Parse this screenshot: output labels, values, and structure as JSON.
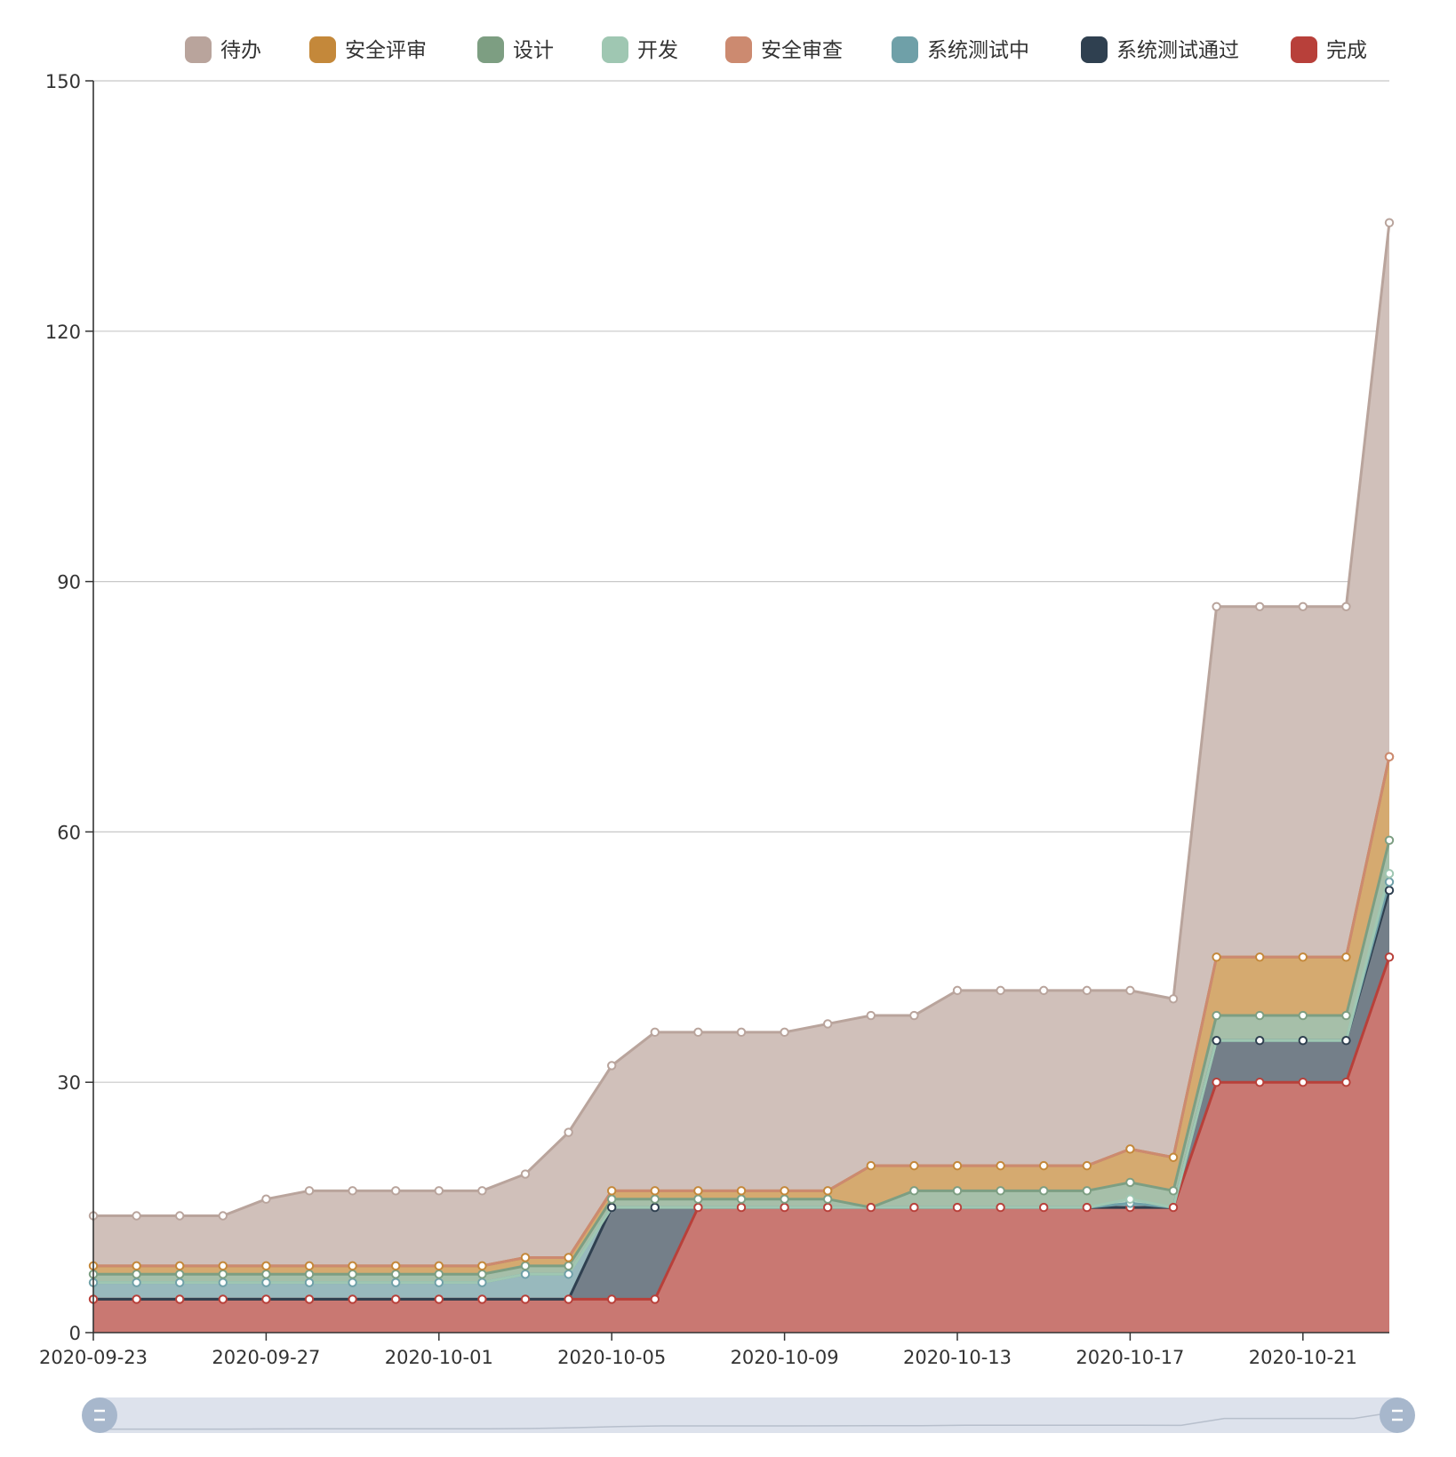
{
  "chart_data": {
    "type": "area",
    "stacked": true,
    "title": "",
    "xlabel": "",
    "ylabel": "",
    "ylim": [
      0,
      150
    ],
    "y_ticks": [
      0,
      30,
      60,
      90,
      120,
      150
    ],
    "x_tick_labels": [
      "2020-09-23",
      "2020-09-27",
      "2020-10-01",
      "2020-10-05",
      "2020-10-09",
      "2020-10-13",
      "2020-10-17",
      "2020-10-21"
    ],
    "grid": "horizontal",
    "legend_position": "top",
    "data_zoom": true,
    "x": [
      "2020-09-23",
      "2020-09-24",
      "2020-09-25",
      "2020-09-26",
      "2020-09-27",
      "2020-09-28",
      "2020-09-29",
      "2020-09-30",
      "2020-10-01",
      "2020-10-02",
      "2020-10-03",
      "2020-10-04",
      "2020-10-05",
      "2020-10-06",
      "2020-10-07",
      "2020-10-08",
      "2020-10-09",
      "2020-10-10",
      "2020-10-11",
      "2020-10-12",
      "2020-10-13",
      "2020-10-14",
      "2020-10-15",
      "2020-10-16",
      "2020-10-17",
      "2020-10-18",
      "2020-10-19",
      "2020-10-20",
      "2020-10-21",
      "2020-10-22",
      "2020-10-23"
    ],
    "series": [
      {
        "name": "完成",
        "color": "#b8403a",
        "fill": "#c97872",
        "values": [
          4,
          4,
          4,
          4,
          4,
          4,
          4,
          4,
          4,
          4,
          4,
          4,
          4,
          4,
          15,
          15,
          15,
          15,
          15,
          15,
          15,
          15,
          15,
          15,
          15,
          15,
          30,
          30,
          30,
          30,
          45
        ]
      },
      {
        "name": "系统测试通过",
        "color": "#2f4050",
        "fill": "#747f89",
        "values": [
          0,
          0,
          0,
          0,
          0,
          0,
          0,
          0,
          0,
          0,
          0,
          0,
          11,
          11,
          0,
          0,
          0,
          0,
          0,
          0,
          0,
          0,
          0,
          0,
          0,
          0,
          5,
          5,
          5,
          5,
          8
        ]
      },
      {
        "name": "系统测试中",
        "color": "#6fa0a8",
        "fill": "#98b9bd",
        "values": [
          2,
          2,
          2,
          2,
          2,
          2,
          2,
          2,
          2,
          2,
          3,
          3,
          0,
          0,
          0,
          0,
          0,
          0,
          0,
          0,
          0,
          0,
          0,
          0,
          0.5,
          0,
          0,
          0,
          0,
          0,
          1
        ]
      },
      {
        "name": "开发",
        "color": "#9fc7b2",
        "fill": "#bbd6c6",
        "values": [
          0,
          0,
          0,
          0,
          0,
          0,
          0,
          0,
          0,
          0,
          0,
          0,
          0,
          0,
          0,
          0,
          0,
          0,
          0,
          0,
          0,
          0,
          0,
          0,
          0.5,
          0,
          0,
          0,
          0,
          0,
          1
        ]
      },
      {
        "name": "设计",
        "color": "#7d9e82",
        "fill": "#a6bfa9",
        "values": [
          1,
          1,
          1,
          1,
          1,
          1,
          1,
          1,
          1,
          1,
          1,
          1,
          1,
          1,
          1,
          1,
          1,
          1,
          0,
          2,
          2,
          2,
          2,
          2,
          2,
          2,
          3,
          3,
          3,
          3,
          4
        ]
      },
      {
        "name": "安全评审",
        "color": "#c4883a",
        "fill": "#d5aa70",
        "values": [
          1,
          1,
          1,
          1,
          1,
          1,
          1,
          1,
          1,
          1,
          1,
          1,
          1,
          1,
          1,
          1,
          1,
          1,
          5,
          3,
          3,
          3,
          3,
          3,
          4,
          4,
          7,
          7,
          7,
          7,
          10
        ]
      },
      {
        "name": "安全审查",
        "color": "#cc8a70",
        "fill": "#ddb0a0",
        "values": [
          0,
          0,
          0,
          0,
          0,
          0,
          0,
          0,
          0,
          0,
          0,
          0,
          0,
          0,
          0,
          0,
          0,
          0,
          0,
          0,
          0,
          0,
          0,
          0,
          0,
          0,
          0,
          0,
          0,
          0,
          0
        ]
      },
      {
        "name": "待办",
        "color": "#b9a49c",
        "fill": "#d0c0ba",
        "values": [
          6,
          6,
          6,
          6,
          8,
          9,
          9,
          9,
          9,
          9,
          10,
          15,
          15,
          19,
          19,
          19,
          19,
          20,
          18,
          18,
          21,
          21,
          21,
          21,
          19,
          19,
          42,
          42,
          42,
          42,
          64
        ]
      }
    ]
  },
  "legend_order": [
    "待办",
    "安全评审",
    "设计",
    "开发",
    "安全审查",
    "系统测试中",
    "系统测试通过",
    "完成"
  ]
}
